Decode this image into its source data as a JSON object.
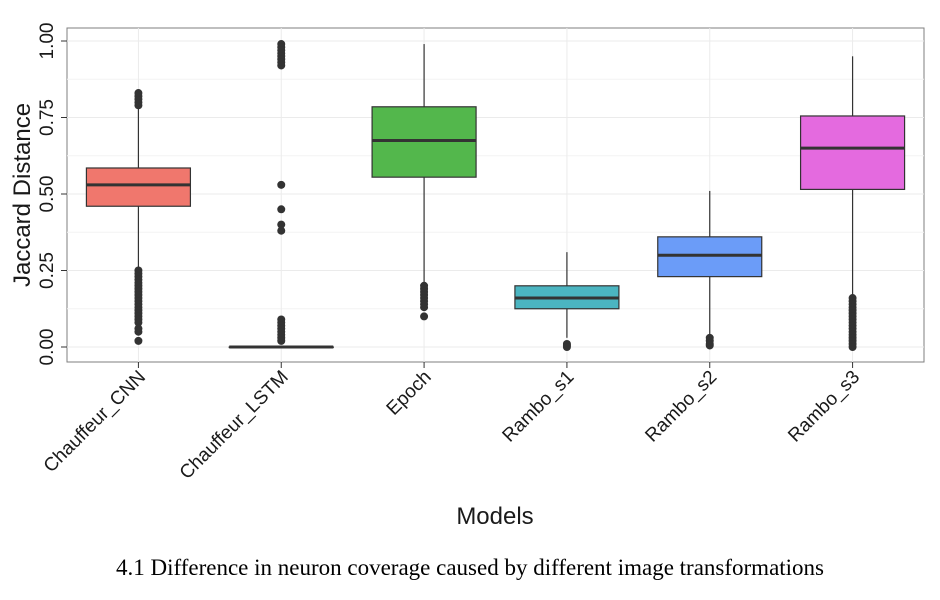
{
  "caption": "4.1 Difference in neuron coverage caused by different image transformations",
  "chart_data": {
    "type": "boxplot",
    "xlabel": "Models",
    "ylabel": "Jaccard Distance",
    "ylim": [
      0.0,
      1.0
    ],
    "yticks": [
      "0.00",
      "0.25",
      "0.50",
      "0.75",
      "1.00"
    ],
    "grid": true,
    "legend": "none",
    "categories": [
      "Chauffeur_CNN",
      "Chauffeur_LSTM",
      "Epoch",
      "Rambo_s1",
      "Rambo_s2",
      "Rambo_s3"
    ],
    "boxes": [
      {
        "name": "Chauffeur_CNN",
        "color": "#F0776D",
        "q1": 0.46,
        "median": 0.53,
        "q3": 0.585,
        "whisker_low": 0.26,
        "whisker_high": 0.78,
        "outliers": [
          0.79,
          0.8,
          0.81,
          0.82,
          0.83,
          0.25,
          0.24,
          0.23,
          0.22,
          0.21,
          0.2,
          0.19,
          0.18,
          0.17,
          0.16,
          0.15,
          0.14,
          0.13,
          0.12,
          0.11,
          0.1,
          0.09,
          0.08,
          0.06,
          0.05,
          0.02
        ]
      },
      {
        "name": "Chauffeur_LSTM",
        "color": "#C49A00",
        "q1": 0.0,
        "median": 0.0,
        "q3": 0.0,
        "whisker_low": 0.0,
        "whisker_high": 0.0,
        "outliers": [
          0.99,
          0.98,
          0.97,
          0.96,
          0.95,
          0.94,
          0.93,
          0.92,
          0.53,
          0.45,
          0.4,
          0.38,
          0.09,
          0.08,
          0.07,
          0.06,
          0.05,
          0.04,
          0.03,
          0.02
        ]
      },
      {
        "name": "Epoch",
        "color": "#53B74C",
        "q1": 0.555,
        "median": 0.675,
        "q3": 0.785,
        "whisker_low": 0.21,
        "whisker_high": 0.99,
        "outliers": [
          0.2,
          0.19,
          0.18,
          0.17,
          0.16,
          0.15,
          0.14,
          0.13,
          0.1
        ]
      },
      {
        "name": "Rambo_s1",
        "color": "#4BB5C1",
        "q1": 0.125,
        "median": 0.16,
        "q3": 0.2,
        "whisker_low": 0.03,
        "whisker_high": 0.31,
        "outliers": [
          0.01,
          0.005,
          0.0
        ]
      },
      {
        "name": "Rambo_s2",
        "color": "#6B9CF8",
        "q1": 0.23,
        "median": 0.3,
        "q3": 0.36,
        "whisker_low": 0.04,
        "whisker_high": 0.51,
        "outliers": [
          0.03,
          0.02,
          0.01,
          0.005
        ]
      },
      {
        "name": "Rambo_s3",
        "color": "#E46ADF",
        "q1": 0.515,
        "median": 0.65,
        "q3": 0.755,
        "whisker_low": 0.17,
        "whisker_high": 0.95,
        "outliers": [
          0.16,
          0.15,
          0.14,
          0.13,
          0.12,
          0.11,
          0.1,
          0.09,
          0.08,
          0.07,
          0.06,
          0.05,
          0.04,
          0.03,
          0.02,
          0.01,
          0.0
        ]
      }
    ]
  }
}
